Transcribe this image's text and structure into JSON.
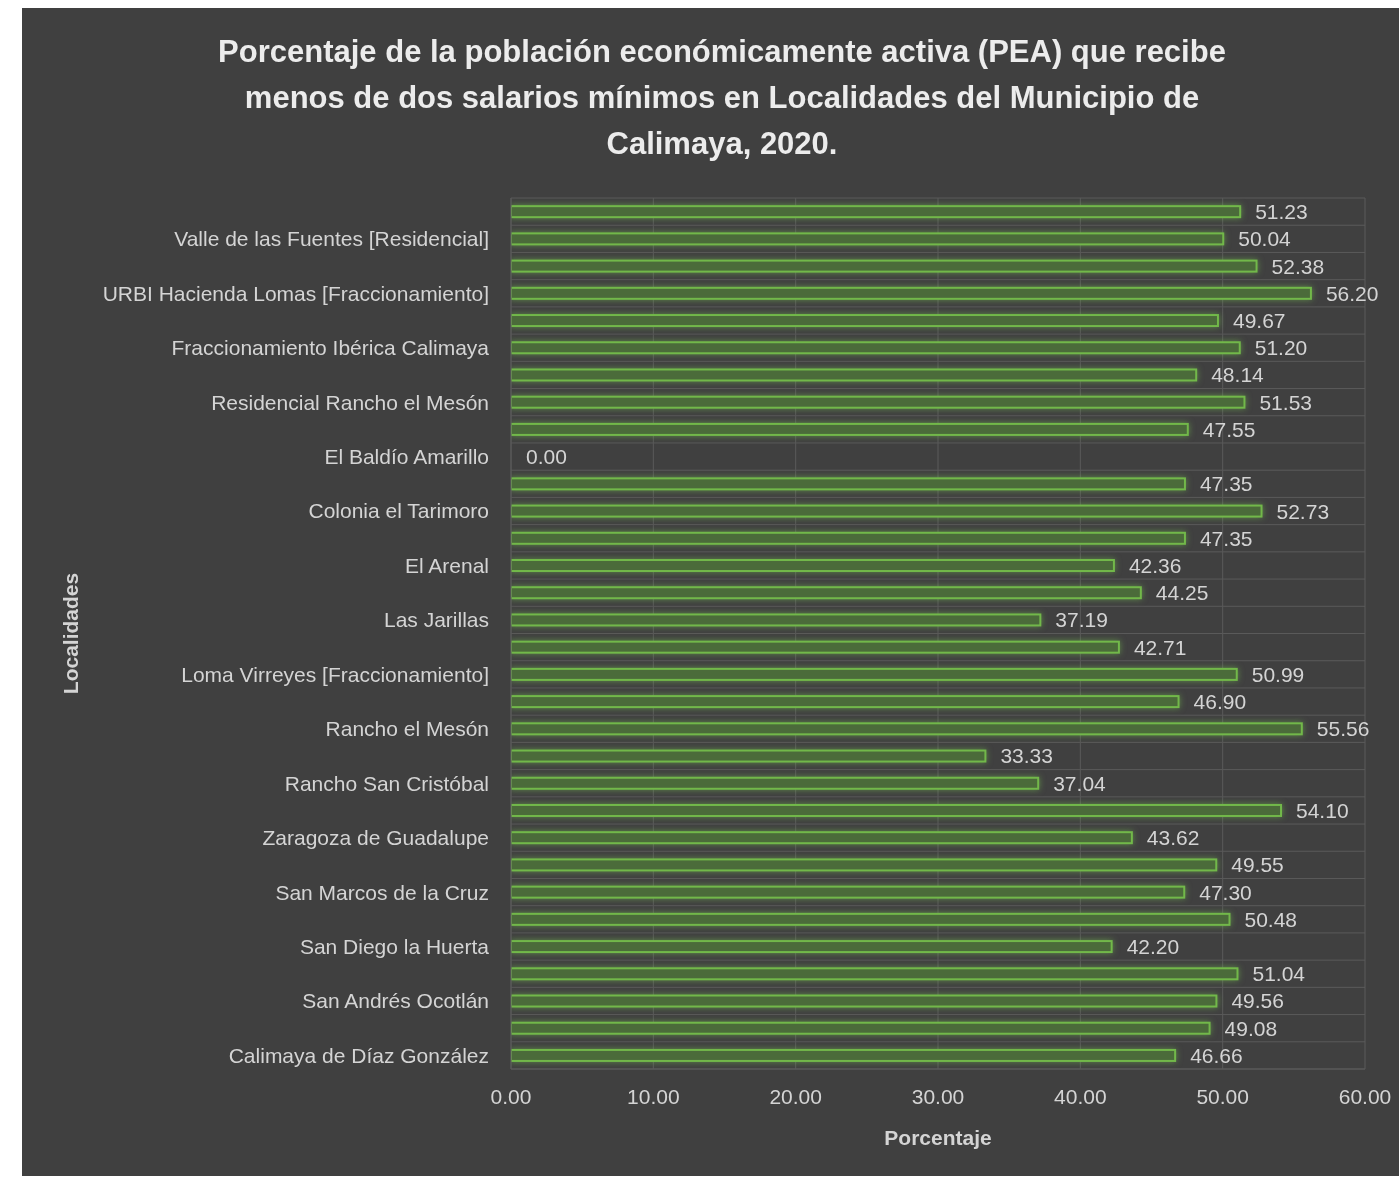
{
  "chart_data": {
    "type": "bar",
    "orientation": "horizontal",
    "title": "Porcentaje de la población económicamente activa (PEA) que recibe menos de dos salarios mínimos en Localidades del Municipio de Calimaya, 2020.",
    "xlabel": "Porcentaje",
    "ylabel": "Localidades",
    "categories": [
      null,
      "Valle de las Fuentes [Residencial]",
      null,
      "URBI Hacienda Lomas [Fraccionamiento]",
      null,
      "Fraccionamiento Ibérica Calimaya",
      null,
      "Residencial Rancho el Mesón",
      null,
      "El Baldío Amarillo",
      null,
      "Colonia el Tarimoro",
      null,
      "El Arenal",
      null,
      "Las Jarillas",
      null,
      "Loma Virreyes [Fraccionamiento]",
      null,
      "Rancho el Mesón",
      null,
      "Rancho San Cristóbal",
      null,
      "Zaragoza de Guadalupe",
      null,
      "San Marcos de la Cruz",
      null,
      "San Diego la Huerta",
      null,
      "San Andrés Ocotlán",
      null,
      "Calimaya de Díaz González"
    ],
    "values": [
      51.23,
      50.04,
      52.38,
      56.2,
      49.67,
      51.2,
      48.14,
      51.53,
      47.55,
      0,
      47.35,
      52.73,
      47.35,
      42.36,
      44.25,
      37.19,
      42.71,
      50.99,
      46.9,
      55.56,
      33.33,
      37.04,
      54.1,
      43.62,
      49.55,
      47.3,
      50.48,
      42.2,
      51.04,
      49.56,
      49.08,
      46.66
    ],
    "value_labels": [
      "51.23",
      "50.04",
      "52.38",
      "56.20",
      "49.67",
      "51.20",
      "48.14",
      "51.53",
      "47.55",
      "0.00",
      "47.35",
      "52.73",
      "47.35",
      "42.36",
      "44.25",
      "37.19",
      "42.71",
      "50.99",
      "46.90",
      "55.56",
      "33.33",
      "37.04",
      "54.10",
      "43.62",
      "49.55",
      "47.30",
      "50.48",
      "42.20",
      "51.04",
      "49.56",
      "49.08",
      "46.66"
    ],
    "color": "#4b6b3a",
    "xlim": [
      0,
      60
    ],
    "xticks": [
      {
        "value": 0,
        "label": "0.00"
      },
      {
        "value": 10,
        "label": "10.00"
      },
      {
        "value": 20,
        "label": "20.00"
      },
      {
        "value": 30,
        "label": "30.00"
      },
      {
        "value": 40,
        "label": "40.00"
      },
      {
        "value": 50,
        "label": "50.00"
      },
      {
        "value": 60,
        "label": "60.00"
      }
    ],
    "grid": true
  }
}
